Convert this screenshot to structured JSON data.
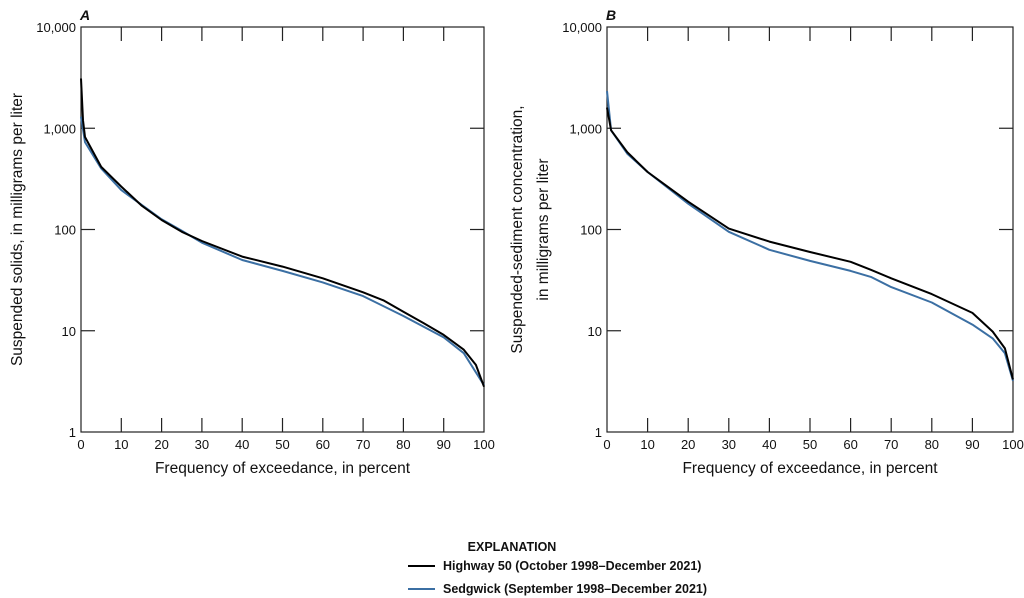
{
  "colors": {
    "Highway 50": "#000000",
    "Sedgwick": "#3b6fa3"
  },
  "legend": {
    "title": "EXPLANATION",
    "items": [
      {
        "label": "Highway 50 (October 1998–December 2021)",
        "color": "#000000"
      },
      {
        "label": "Sedgwick (September 1998–December 2021)",
        "color": "#3b6fa3"
      }
    ]
  },
  "chart_data": [
    {
      "type": "line",
      "panel": "A",
      "xlabel": "Frequency of exceedance, in percent",
      "ylabel": [
        "Suspended solids, in milligrams per liter"
      ],
      "xlim": [
        0,
        100
      ],
      "ylim": [
        1,
        10000
      ],
      "yscale": "log",
      "xticks": [
        "0",
        "10",
        "20",
        "30",
        "40",
        "50",
        "60",
        "70",
        "80",
        "90",
        "100"
      ],
      "yticks": [
        "1",
        "10",
        "100",
        "1,000",
        "10,000"
      ],
      "grid": false,
      "series": [
        {
          "name": "Highway 50",
          "x": [
            0,
            0.5,
            1,
            5,
            10,
            15,
            20,
            25,
            30,
            40,
            50,
            60,
            70,
            75,
            80,
            85,
            90,
            95,
            98,
            100
          ],
          "y": [
            3100,
            1200,
            820,
            415,
            265,
            173,
            124,
            95,
            77,
            54,
            43,
            33,
            24,
            20,
            15.4,
            11.9,
            9.1,
            6.5,
            4.6,
            2.8
          ]
        },
        {
          "name": "Sedgwick",
          "x": [
            0,
            1,
            5,
            10,
            20,
            25,
            30,
            40,
            50,
            60,
            70,
            80,
            90,
            95,
            100
          ],
          "y": [
            1300,
            730,
            400,
            245,
            126,
            97,
            74,
            50,
            39,
            30,
            22,
            14,
            8.6,
            6.0,
            2.9
          ]
        }
      ]
    },
    {
      "type": "line",
      "panel": "B",
      "xlabel": "Frequency of exceedance, in percent",
      "ylabel": [
        "Suspended-sediment concentration,",
        "in milligrams per liter"
      ],
      "xlim": [
        0,
        100
      ],
      "ylim": [
        1,
        10000
      ],
      "yscale": "log",
      "xticks": [
        "0",
        "10",
        "20",
        "30",
        "40",
        "50",
        "60",
        "70",
        "80",
        "90",
        "100"
      ],
      "yticks": [
        "1",
        "10",
        "100",
        "1,000",
        "10,000"
      ],
      "grid": false,
      "series": [
        {
          "name": "Highway 50",
          "x": [
            0,
            1,
            5,
            10,
            20,
            30,
            40,
            50,
            60,
            65,
            70,
            80,
            90,
            95,
            98,
            100
          ],
          "y": [
            1600,
            955,
            580,
            370,
            188,
            102,
            76,
            60,
            48,
            40,
            33,
            23,
            15,
            9.8,
            6.7,
            3.3
          ]
        },
        {
          "name": "Sedgwick",
          "x": [
            0,
            1,
            5,
            10,
            20,
            30,
            40,
            50,
            60,
            65,
            70,
            80,
            90,
            95,
            98,
            100
          ],
          "y": [
            2330,
            955,
            560,
            370,
            180,
            95,
            63,
            49,
            39,
            34,
            27,
            19,
            11.5,
            8.4,
            6.0,
            3.2
          ]
        }
      ]
    }
  ]
}
